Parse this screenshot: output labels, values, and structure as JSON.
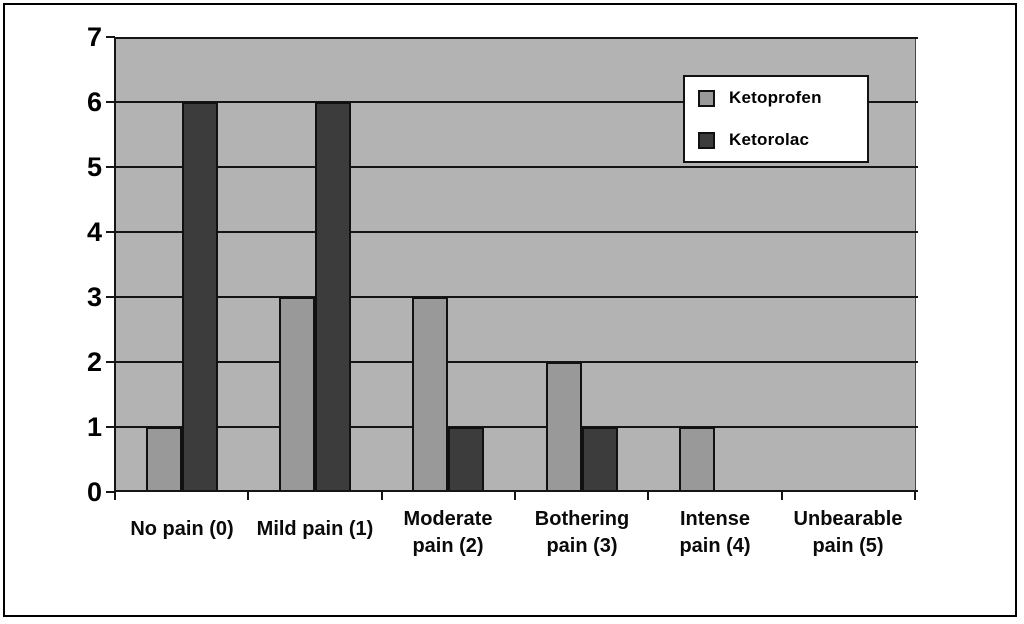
{
  "colors": {
    "page_bg": "#ffffff",
    "frame_border": "#000000",
    "plot_bg": "#b3b3b3",
    "line": "#151515",
    "ketoprofen": "#999999",
    "ketorolac": "#3c3c3c",
    "legend_bg": "#ffffff",
    "text": "#000000"
  },
  "chart_data": {
    "type": "bar",
    "title": "",
    "xlabel": "",
    "ylabel": "",
    "categories": [
      "No pain (0)",
      "Mild pain (1)",
      "Moderate\npain (2)",
      "Bothering\npain (3)",
      "Intense\npain (4)",
      "Unbearable\npain (5)"
    ],
    "series": [
      {
        "name": "Ketoprofen",
        "color": "#999999",
        "values": [
          1,
          3,
          3,
          2,
          1,
          0
        ]
      },
      {
        "name": "Ketorolac",
        "color": "#3c3c3c",
        "values": [
          6,
          6,
          1,
          1,
          0,
          0
        ]
      }
    ],
    "ylim": [
      0,
      7
    ],
    "yticks": [
      0,
      1,
      2,
      3,
      4,
      5,
      6,
      7
    ],
    "grid": true,
    "legend_position": "top-right",
    "plot_background": "#b3b3b3"
  }
}
